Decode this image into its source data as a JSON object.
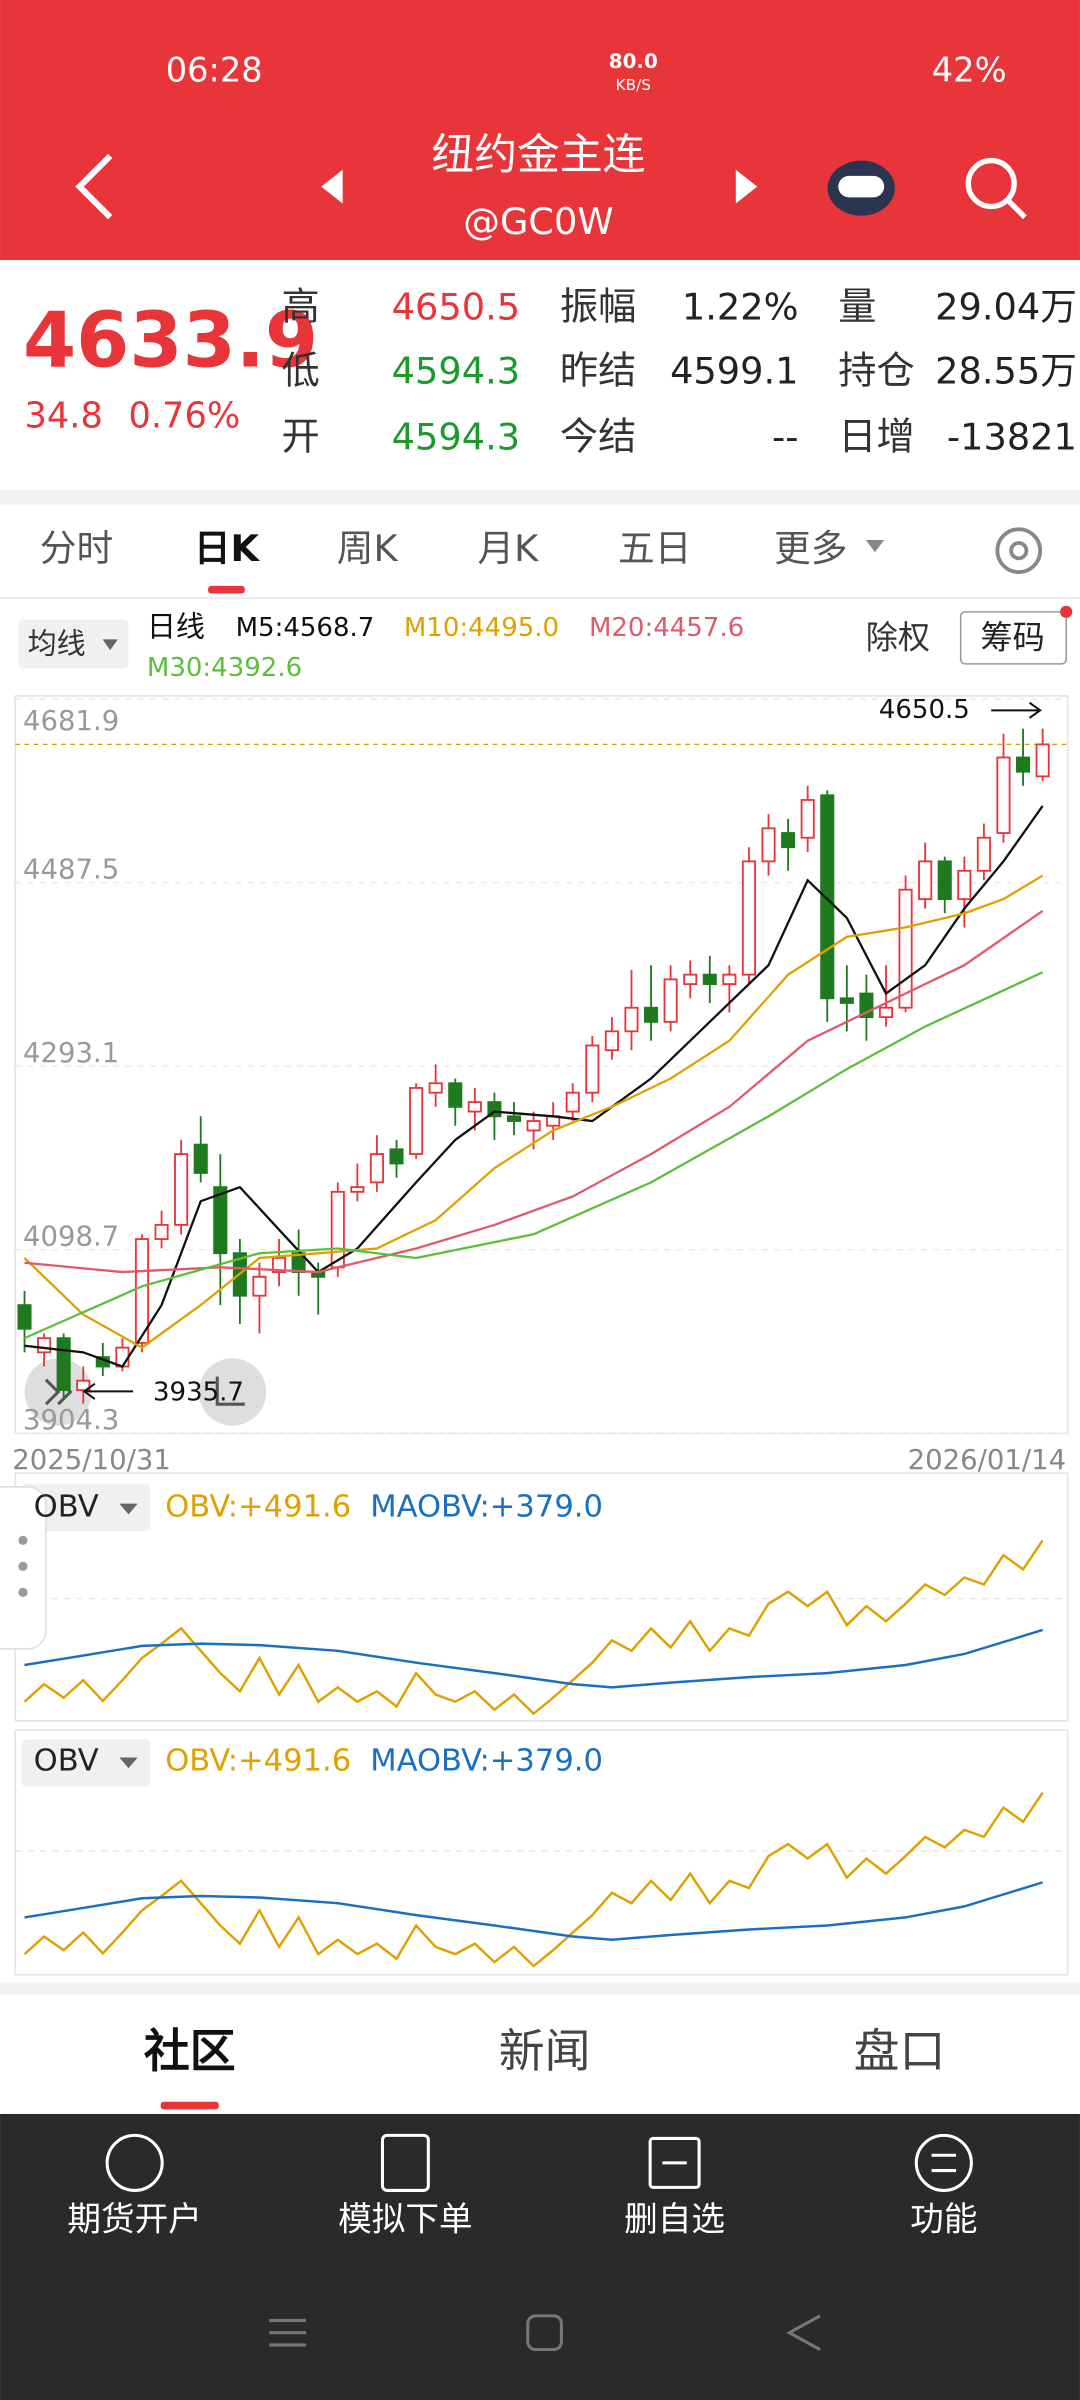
{
  "status_bar": {
    "time": "06:28",
    "network_speed": "80.0",
    "speed_unit": "KB/S",
    "battery": "42%"
  },
  "header": {
    "title": "纽约金主连",
    "code": "@GC0W"
  },
  "quote": {
    "price": 4633.9,
    "change": 34.8,
    "change_pct": "0.76%",
    "fields": [
      {
        "label": "高",
        "value": 4650.5,
        "color": "#e8353a"
      },
      {
        "label": "低",
        "value": 4594.3,
        "color": "#1a9a2a"
      },
      {
        "label": "开",
        "value": 4594.3,
        "color": "#1a9a2a"
      },
      {
        "label": "振幅",
        "value": "1.22%"
      },
      {
        "label": "昨结",
        "value": 4599.1
      },
      {
        "label": "今结",
        "value": "--"
      },
      {
        "label": "量",
        "value": "29.04万"
      },
      {
        "label": "持仓",
        "value": "28.55万"
      },
      {
        "label": "日增",
        "value": -13821
      }
    ]
  },
  "period_tabs": [
    "分时",
    "日K",
    "周K",
    "月K",
    "五日",
    "更多"
  ],
  "active_tab_index": 1,
  "kline": {
    "ma_selector": "均线",
    "period": "日线",
    "ex_rights": "除权",
    "chips": "筹码",
    "ylim": [
      3904.3,
      4681.9
    ],
    "yticks": [
      4681.9,
      4487.5,
      4293.1,
      4098.7,
      3904.3
    ],
    "up_color": "#e8353a",
    "down_color": "#1f7a1f",
    "open": [
      4040,
      3990,
      4005,
      3950,
      3985,
      3975,
      4000,
      4110,
      4125,
      4210,
      4165,
      4095,
      4050,
      4075,
      4095,
      4075,
      4080,
      4160,
      4170,
      4205,
      4200,
      4265,
      4275,
      4245,
      4255,
      4240,
      4225,
      4230,
      4245,
      4265,
      4310,
      4330,
      4355,
      4340,
      4380,
      4390,
      4380,
      4390,
      4510,
      4540,
      4535,
      4580,
      4365,
      4370,
      4345,
      4355,
      4470,
      4510,
      4470,
      4500,
      4540,
      4620,
      4600
    ],
    "high": [
      4055,
      4010,
      4010,
      3975,
      4000,
      4005,
      4115,
      4140,
      4215,
      4240,
      4200,
      4110,
      4085,
      4110,
      4120,
      4085,
      4170,
      4190,
      4220,
      4215,
      4275,
      4295,
      4280,
      4270,
      4265,
      4255,
      4245,
      4255,
      4275,
      4325,
      4345,
      4395,
      4400,
      4400,
      4405,
      4410,
      4400,
      4525,
      4560,
      4555,
      4590,
      4585,
      4400,
      4390,
      4400,
      4495,
      4530,
      4515,
      4515,
      4550,
      4645,
      4650.5,
      4650.5
    ],
    "low": [
      3990,
      3975,
      3940,
      3935.7,
      3965,
      3970,
      3990,
      4100,
      4115,
      4170,
      4040,
      4020,
      4010,
      4060,
      4050,
      4030,
      4070,
      4150,
      4160,
      4175,
      4195,
      4250,
      4230,
      4225,
      4215,
      4220,
      4205,
      4215,
      4235,
      4255,
      4300,
      4310,
      4320,
      4330,
      4365,
      4360,
      4350,
      4380,
      4495,
      4500,
      4520,
      4340,
      4330,
      4320,
      4335,
      4350,
      4460,
      4455,
      4440,
      4490,
      4530,
      4590,
      4595
    ],
    "close": [
      4015,
      4005,
      3950,
      3960,
      3975,
      3995,
      4110,
      4125,
      4200,
      4180,
      4095,
      4050,
      4070,
      4090,
      4075,
      4070,
      4160,
      4165,
      4200,
      4190,
      4270,
      4275,
      4250,
      4255,
      4240,
      4235,
      4235,
      4240,
      4265,
      4315,
      4330,
      4355,
      4340,
      4385,
      4390,
      4380,
      4390,
      4510,
      4545,
      4525,
      4575,
      4365,
      4360,
      4345,
      4355,
      4480,
      4510,
      4470,
      4500,
      4535,
      4620,
      4605,
      4633.9
    ],
    "ma_series": [
      {
        "label": "M5:4568.7",
        "color": "#111111",
        "x": [
          0,
          3,
          5,
          7,
          9,
          11,
          13,
          15,
          17,
          20,
          22,
          24,
          27,
          29,
          32,
          35,
          38,
          40,
          42,
          44,
          46,
          48,
          50,
          52
        ],
        "values": [
          3997,
          3990,
          3975,
          4040,
          4150,
          4165,
          4120,
          4075,
          4100,
          4170,
          4215,
          4245,
          4240,
          4235,
          4280,
          4340,
          4400,
          4490,
          4450,
          4370,
          4400,
          4460,
          4510,
          4568.7
        ]
      },
      {
        "label": "M10:4495.0",
        "color": "#e0a000",
        "x": [
          0,
          3,
          6,
          9,
          12,
          15,
          18,
          21,
          24,
          27,
          30,
          33,
          36,
          39,
          42,
          45,
          48,
          50,
          52
        ],
        "values": [
          4090,
          4030,
          3995,
          4040,
          4090,
          4095,
          4100,
          4130,
          4185,
          4225,
          4250,
          4280,
          4320,
          4390,
          4430,
          4440,
          4455,
          4470,
          4495.0
        ]
      },
      {
        "label": "M20:4457.6",
        "color": "#e05a6a",
        "x": [
          0,
          5,
          10,
          15,
          20,
          24,
          28,
          32,
          36,
          40,
          44,
          48,
          52
        ],
        "values": [
          4085,
          4075,
          4080,
          4075,
          4100,
          4125,
          4155,
          4200,
          4250,
          4320,
          4360,
          4400,
          4457.6
        ]
      },
      {
        "label": "M30:4392.6",
        "color": "#5bbf3a",
        "x": [
          0,
          6,
          12,
          16,
          20,
          26,
          32,
          38,
          42,
          46,
          52
        ],
        "values": [
          4005,
          4060,
          4095,
          4100,
          4090,
          4115,
          4170,
          4240,
          4290,
          4335,
          4392.6
        ]
      }
    ],
    "start_date": "2025/10/31",
    "end_date": "2026/01/14"
  },
  "obv_panels": [
    {
      "selector": "OBV",
      "obv_label": "OBV:+491.6",
      "maobv_label": "MAOBV:+379.0"
    },
    {
      "selector": "OBV",
      "obv_label": "OBV:+491.6",
      "maobv_label": "MAOBV:+379.0"
    }
  ],
  "obv": {
    "ylim": [
      265,
      505
    ],
    "obv_color": "#e0a000",
    "maobv_color": "#1a6fc0",
    "obv_values": [
      289,
      311,
      294,
      316,
      290,
      316,
      344,
      362,
      381,
      353,
      325,
      302,
      344,
      298,
      335,
      289,
      307,
      289,
      302,
      283,
      325,
      298,
      289,
      302,
      279,
      298,
      274,
      294,
      316,
      338,
      366,
      353,
      381,
      357,
      390,
      353,
      381,
      372,
      412,
      427,
      409,
      427,
      385,
      409,
      390,
      412,
      436,
      423,
      445,
      436,
      473,
      455,
      491.6
    ],
    "maobv_x": [
      0,
      3,
      6,
      9,
      12,
      16,
      20,
      24,
      28,
      30,
      33,
      37,
      41,
      45,
      48,
      52
    ],
    "maobv_values": [
      335,
      347,
      359,
      362,
      360,
      353,
      338,
      325,
      311,
      307,
      313,
      320,
      325,
      335,
      349,
      379.0
    ]
  },
  "bottom_tabs": [
    "社区",
    "新闻",
    "盘口"
  ],
  "actions": [
    "期货开户",
    "模拟下单",
    "删自选",
    "功能"
  ]
}
